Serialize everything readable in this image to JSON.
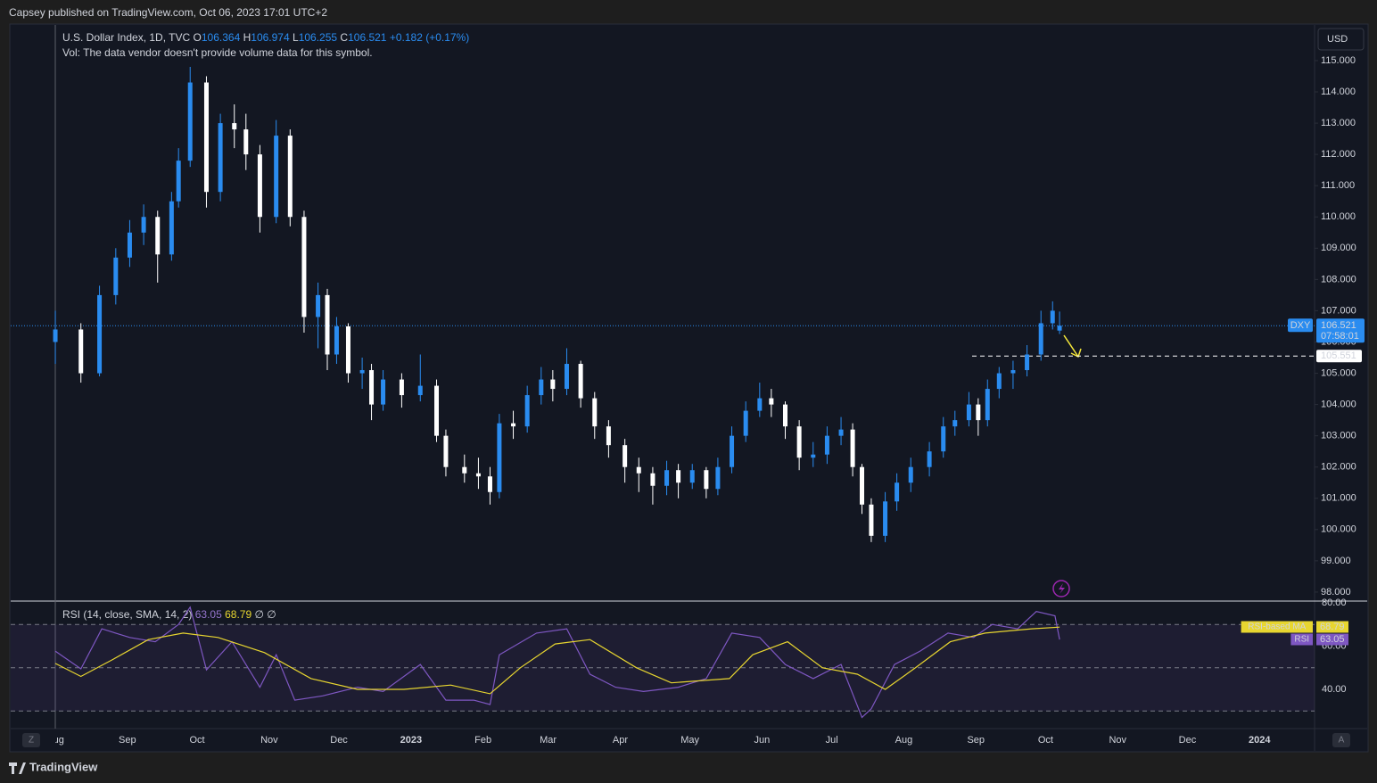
{
  "header": {
    "publisher": "Capsey published on TradingView.com, Oct 06, 2023 17:01 UTC+2"
  },
  "chart_data": [
    {
      "type": "candlestick",
      "title": "U.S. Dollar Index, 1D, TVC",
      "legend_keys": [
        "O",
        "H",
        "L",
        "C"
      ],
      "change_label": "+0.182 (+0.17%)",
      "note": "Vol: The data vendor doesn't provide volume data for this symbol.",
      "currency": "USD",
      "symbol": "DXY",
      "countdown": "07:58:01",
      "hline": 105.551,
      "up_color": "#2a8cf0",
      "down_color": "#ffffff",
      "x": [
        0,
        11,
        19,
        26,
        32,
        38,
        44,
        50,
        53,
        58,
        65,
        71,
        77,
        82,
        88,
        95,
        101,
        107,
        113,
        117,
        121,
        126,
        132,
        136,
        141,
        149,
        157,
        164,
        168,
        176,
        182,
        187,
        191,
        197,
        203,
        209,
        214,
        220,
        226,
        232,
        238,
        245,
        251,
        257,
        263,
        268,
        274,
        280,
        285,
        291,
        297,
        303,
        308,
        314,
        320,
        326,
        332,
        338,
        343,
        347,
        351,
        357,
        362,
        368,
        376,
        382,
        387,
        393,
        397,
        401,
        406,
        412,
        418,
        424,
        429,
        432
      ],
      "open": [
        106.0,
        106.4,
        105.0,
        107.5,
        108.7,
        109.5,
        110.0,
        108.8,
        110.5,
        111.8,
        114.3,
        110.8,
        113.0,
        112.8,
        112.0,
        110.0,
        112.6,
        110.0,
        106.8,
        107.5,
        105.6,
        106.5,
        105.0,
        105.1,
        104.0,
        104.8,
        104.3,
        104.6,
        103.0,
        102.0,
        101.8,
        101.7,
        101.2,
        103.4,
        103.3,
        104.3,
        104.8,
        104.5,
        105.3,
        104.2,
        103.3,
        102.7,
        102.0,
        101.8,
        101.4,
        101.9,
        101.5,
        101.9,
        101.3,
        102.0,
        103.0,
        103.8,
        104.2,
        104.0,
        103.3,
        102.3,
        102.4,
        103.0,
        103.2,
        102.0,
        100.8,
        99.8,
        100.9,
        101.5,
        102.0,
        102.5,
        103.3,
        103.5,
        104.0,
        103.5,
        104.5,
        105.0,
        105.1,
        105.6,
        106.6,
        106.364
      ],
      "high": [
        107.0,
        106.6,
        107.8,
        109.0,
        109.9,
        110.4,
        110.2,
        110.8,
        112.2,
        114.8,
        114.5,
        113.3,
        113.6,
        113.3,
        112.3,
        113.1,
        112.8,
        110.2,
        107.9,
        107.7,
        106.8,
        106.6,
        105.5,
        105.3,
        105.1,
        105.0,
        105.6,
        104.8,
        103.2,
        102.4,
        102.3,
        102.0,
        103.7,
        103.8,
        104.6,
        105.2,
        105.1,
        105.8,
        105.4,
        104.4,
        103.5,
        102.9,
        102.3,
        102.0,
        102.2,
        102.1,
        102.1,
        102.0,
        102.3,
        103.3,
        104.1,
        104.7,
        104.5,
        104.1,
        103.5,
        102.8,
        103.3,
        103.6,
        103.4,
        102.1,
        101.0,
        101.2,
        101.8,
        102.3,
        102.8,
        103.6,
        103.8,
        104.4,
        104.2,
        104.8,
        105.2,
        105.4,
        105.9,
        107.0,
        107.3,
        106.974
      ],
      "low": [
        105.3,
        104.7,
        104.9,
        107.2,
        108.4,
        109.1,
        107.9,
        108.6,
        110.3,
        111.6,
        110.3,
        110.5,
        112.2,
        111.5,
        109.5,
        109.8,
        109.7,
        106.3,
        105.8,
        105.1,
        105.3,
        104.7,
        104.5,
        103.5,
        103.8,
        103.9,
        104.1,
        102.8,
        101.7,
        101.5,
        101.3,
        100.8,
        101.0,
        102.9,
        103.1,
        104.0,
        104.1,
        104.3,
        103.9,
        102.9,
        102.3,
        101.5,
        101.2,
        100.8,
        101.1,
        101.0,
        101.3,
        101.0,
        101.1,
        101.8,
        102.8,
        103.6,
        103.6,
        102.9,
        101.9,
        102.0,
        102.1,
        102.7,
        101.7,
        100.5,
        99.6,
        99.6,
        100.6,
        101.2,
        101.7,
        102.3,
        103.0,
        103.3,
        103.0,
        103.3,
        104.2,
        104.5,
        104.9,
        105.4,
        106.4,
        106.255
      ],
      "close": [
        106.4,
        105.0,
        107.5,
        108.7,
        109.5,
        110.0,
        108.8,
        110.5,
        111.8,
        114.3,
        110.8,
        113.0,
        112.8,
        112.0,
        110.0,
        112.6,
        110.0,
        106.8,
        107.5,
        105.6,
        106.5,
        105.0,
        105.1,
        104.0,
        104.8,
        104.3,
        104.6,
        103.0,
        102.0,
        101.8,
        101.7,
        101.2,
        103.4,
        103.3,
        104.3,
        104.8,
        104.5,
        105.3,
        104.2,
        103.3,
        102.7,
        102.0,
        101.8,
        101.4,
        101.9,
        101.5,
        101.9,
        101.3,
        102.0,
        103.0,
        103.8,
        104.2,
        104.0,
        103.3,
        102.3,
        102.4,
        103.0,
        103.2,
        102.0,
        100.8,
        99.8,
        100.9,
        101.5,
        102.0,
        102.5,
        103.3,
        103.5,
        104.0,
        103.5,
        104.5,
        105.0,
        105.1,
        105.6,
        106.6,
        107.0,
        106.521
      ],
      "xlim": [
        -19.2,
        541.7
      ],
      "ylim": [
        97.77,
        116.14
      ],
      "grid": false,
      "yticks": [
        {
          "value": 98,
          "label": "98.000"
        },
        {
          "value": 99,
          "label": "99.000"
        },
        {
          "value": 100,
          "label": "100.000"
        },
        {
          "value": 101,
          "label": "101.000"
        },
        {
          "value": 102,
          "label": "102.000"
        },
        {
          "value": 103,
          "label": "103.000"
        },
        {
          "value": 104,
          "label": "104.000"
        },
        {
          "value": 105,
          "label": "105.000"
        },
        {
          "value": 106,
          "label": "106.000"
        },
        {
          "value": 107,
          "label": "107.000"
        },
        {
          "value": 108,
          "label": "108.000"
        },
        {
          "value": 109,
          "label": "109.000"
        },
        {
          "value": 110,
          "label": "110.000"
        },
        {
          "value": 111,
          "label": "111.000"
        },
        {
          "value": 112,
          "label": "112.000"
        },
        {
          "value": 113,
          "label": "113.000"
        },
        {
          "value": 114,
          "label": "114.000"
        },
        {
          "value": 115,
          "label": "115.000"
        }
      ],
      "xticks": [
        {
          "value": 0,
          "label": "Aug"
        },
        {
          "value": 31,
          "label": "Sep"
        },
        {
          "value": 61,
          "label": "Oct"
        },
        {
          "value": 92,
          "label": "Nov"
        },
        {
          "value": 122,
          "label": "Dec"
        },
        {
          "value": 153,
          "label": "2023"
        },
        {
          "value": 184,
          "label": "Feb"
        },
        {
          "value": 212,
          "label": "Mar"
        },
        {
          "value": 243,
          "label": "Apr"
        },
        {
          "value": 273,
          "label": "May"
        },
        {
          "value": 304,
          "label": "Jun"
        },
        {
          "value": 334,
          "label": "Jul"
        },
        {
          "value": 365,
          "label": "Aug"
        },
        {
          "value": 396,
          "label": "Sep"
        },
        {
          "value": 426,
          "label": "Oct"
        },
        {
          "value": 457,
          "label": "Nov"
        },
        {
          "value": 487,
          "label": "Dec"
        },
        {
          "value": 518,
          "label": "2024"
        }
      ]
    },
    {
      "type": "line",
      "title": "RSI (14, close, SMA, 14, 2)",
      "na_marks": "∅ ∅",
      "xlim": [
        -19.2,
        541.7
      ],
      "ylim": [
        21.86,
        80.41
      ],
      "levels": [
        70,
        50,
        30
      ],
      "yticks": [
        {
          "value": 80,
          "label": "80.00"
        },
        {
          "value": 60,
          "label": "60.00"
        },
        {
          "value": 40,
          "label": "40.00"
        }
      ],
      "series": [
        {
          "name": "RSI",
          "color": "#7e57c2",
          "x": [
            0,
            11,
            20,
            32,
            43,
            53,
            58,
            65,
            76,
            88,
            95,
            103,
            115,
            130,
            141,
            157,
            168,
            180,
            187,
            191,
            207,
            220,
            230,
            241,
            253,
            268,
            280,
            291,
            303,
            314,
            326,
            338,
            347,
            351,
            361,
            372,
            384,
            395,
            403,
            414,
            422,
            430,
            432
          ],
          "values": [
            57.7,
            49.5,
            68,
            64,
            62,
            70,
            78,
            49,
            62,
            41,
            56,
            35,
            37,
            41,
            39,
            51.5,
            35,
            35,
            33,
            56,
            66,
            68,
            47,
            41,
            39,
            41,
            45,
            66,
            64,
            51.5,
            45,
            51.5,
            27,
            31,
            51.5,
            57.7,
            66,
            64,
            70,
            68,
            76,
            74,
            63.05
          ]
        },
        {
          "name": "RSI-based MA",
          "color": "#e8d630",
          "x": [
            0,
            11,
            25,
            40,
            55,
            70,
            90,
            110,
            130,
            150,
            170,
            187,
            200,
            215,
            230,
            250,
            265,
            290,
            300,
            315,
            330,
            345,
            357,
            370,
            385,
            400,
            420,
            432
          ],
          "values": [
            52,
            46,
            54,
            63,
            66,
            64,
            57,
            45,
            40,
            40,
            42,
            38,
            50,
            61,
            63,
            50,
            43,
            45,
            56,
            62,
            50,
            47,
            40,
            50,
            62,
            66,
            68,
            68.79
          ]
        }
      ]
    }
  ],
  "buttons": {
    "left": "Z",
    "right": "A"
  },
  "footer": {
    "brand": "TradingView"
  }
}
